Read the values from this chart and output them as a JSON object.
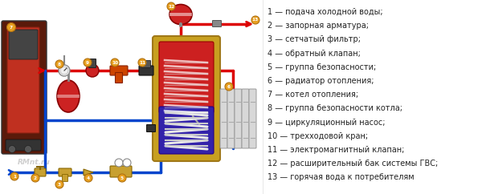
{
  "background_color": "#ffffff",
  "figsize": [
    6.0,
    2.42
  ],
  "dpi": 100,
  "legend_items": [
    "1 — подача холодной воды;",
    "2 — запорная арматура;",
    "3 — сетчатый фильтр;",
    "4 — обратный клапан;",
    "5 — группа безопасности;",
    "6 — радиатор отопления;",
    "7 — котел отопления;",
    "8 — группа безопасности котла;",
    "9 — циркуляционный насос;",
    "10 — трехходовой кран;",
    "11 — электромагнитный клапан;",
    "12 — расширительный бак системы ГВС;",
    "13 — горячая вода к потребителям"
  ],
  "pipe_red": "#dd0000",
  "pipe_blue": "#0044cc",
  "label_bg": "#e8a020",
  "boiler_dark": "#5a1a0a",
  "boiler_mid": "#8a2a10",
  "boiler_light": "#c03020",
  "tank_border": "#c8a020",
  "tank_red": "#cc2020",
  "tank_blue": "#3322aa",
  "coil_color": "#f0c840",
  "radiator_color": "#c8c8c8",
  "exp_vessel_red": "#cc2020",
  "watermark": "RMnt.ru"
}
